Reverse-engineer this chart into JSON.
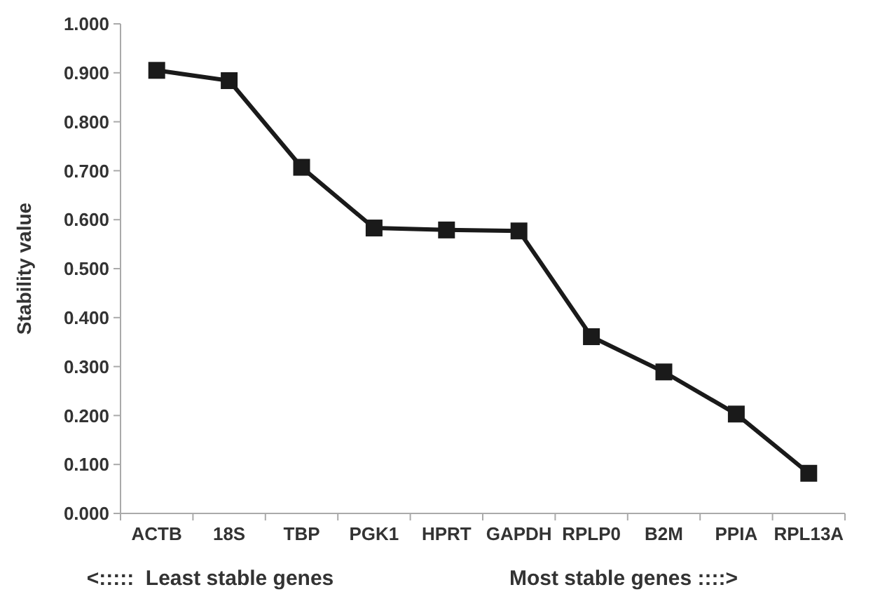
{
  "chart_data": {
    "type": "line",
    "ylabel": "Stability value",
    "categories": [
      "ACTB",
      "18S",
      "TBP",
      "PGK1",
      "HPRT",
      "GAPDH",
      "RPLP0",
      "B2M",
      "PPIA",
      "RPL13A"
    ],
    "series": [
      {
        "color": "#1a1a1a",
        "values": [
          0.905,
          0.884,
          0.707,
          0.583,
          0.579,
          0.577,
          0.361,
          0.289,
          0.203,
          0.082
        ]
      }
    ],
    "ylim": [
      0,
      1
    ],
    "yticks": [
      {
        "value": 0,
        "label": "0.000"
      },
      {
        "value": 0.1,
        "label": "0.100"
      },
      {
        "value": 0.2,
        "label": "0.200"
      },
      {
        "value": 0.3,
        "label": "0.300"
      },
      {
        "value": 0.4,
        "label": "0.400"
      },
      {
        "value": 0.5,
        "label": "0.500"
      },
      {
        "value": 0.6,
        "label": "0.600"
      },
      {
        "value": 0.7,
        "label": "0.700"
      },
      {
        "value": 0.8,
        "label": "0.800"
      },
      {
        "value": 0.9,
        "label": "0.900"
      },
      {
        "value": 1,
        "label": "1.000"
      }
    ],
    "marker": "square",
    "line_style": "solid",
    "grid": false,
    "annotations": [
      "<:::::  Least stable genes",
      "Most stable genes ::::>"
    ]
  }
}
